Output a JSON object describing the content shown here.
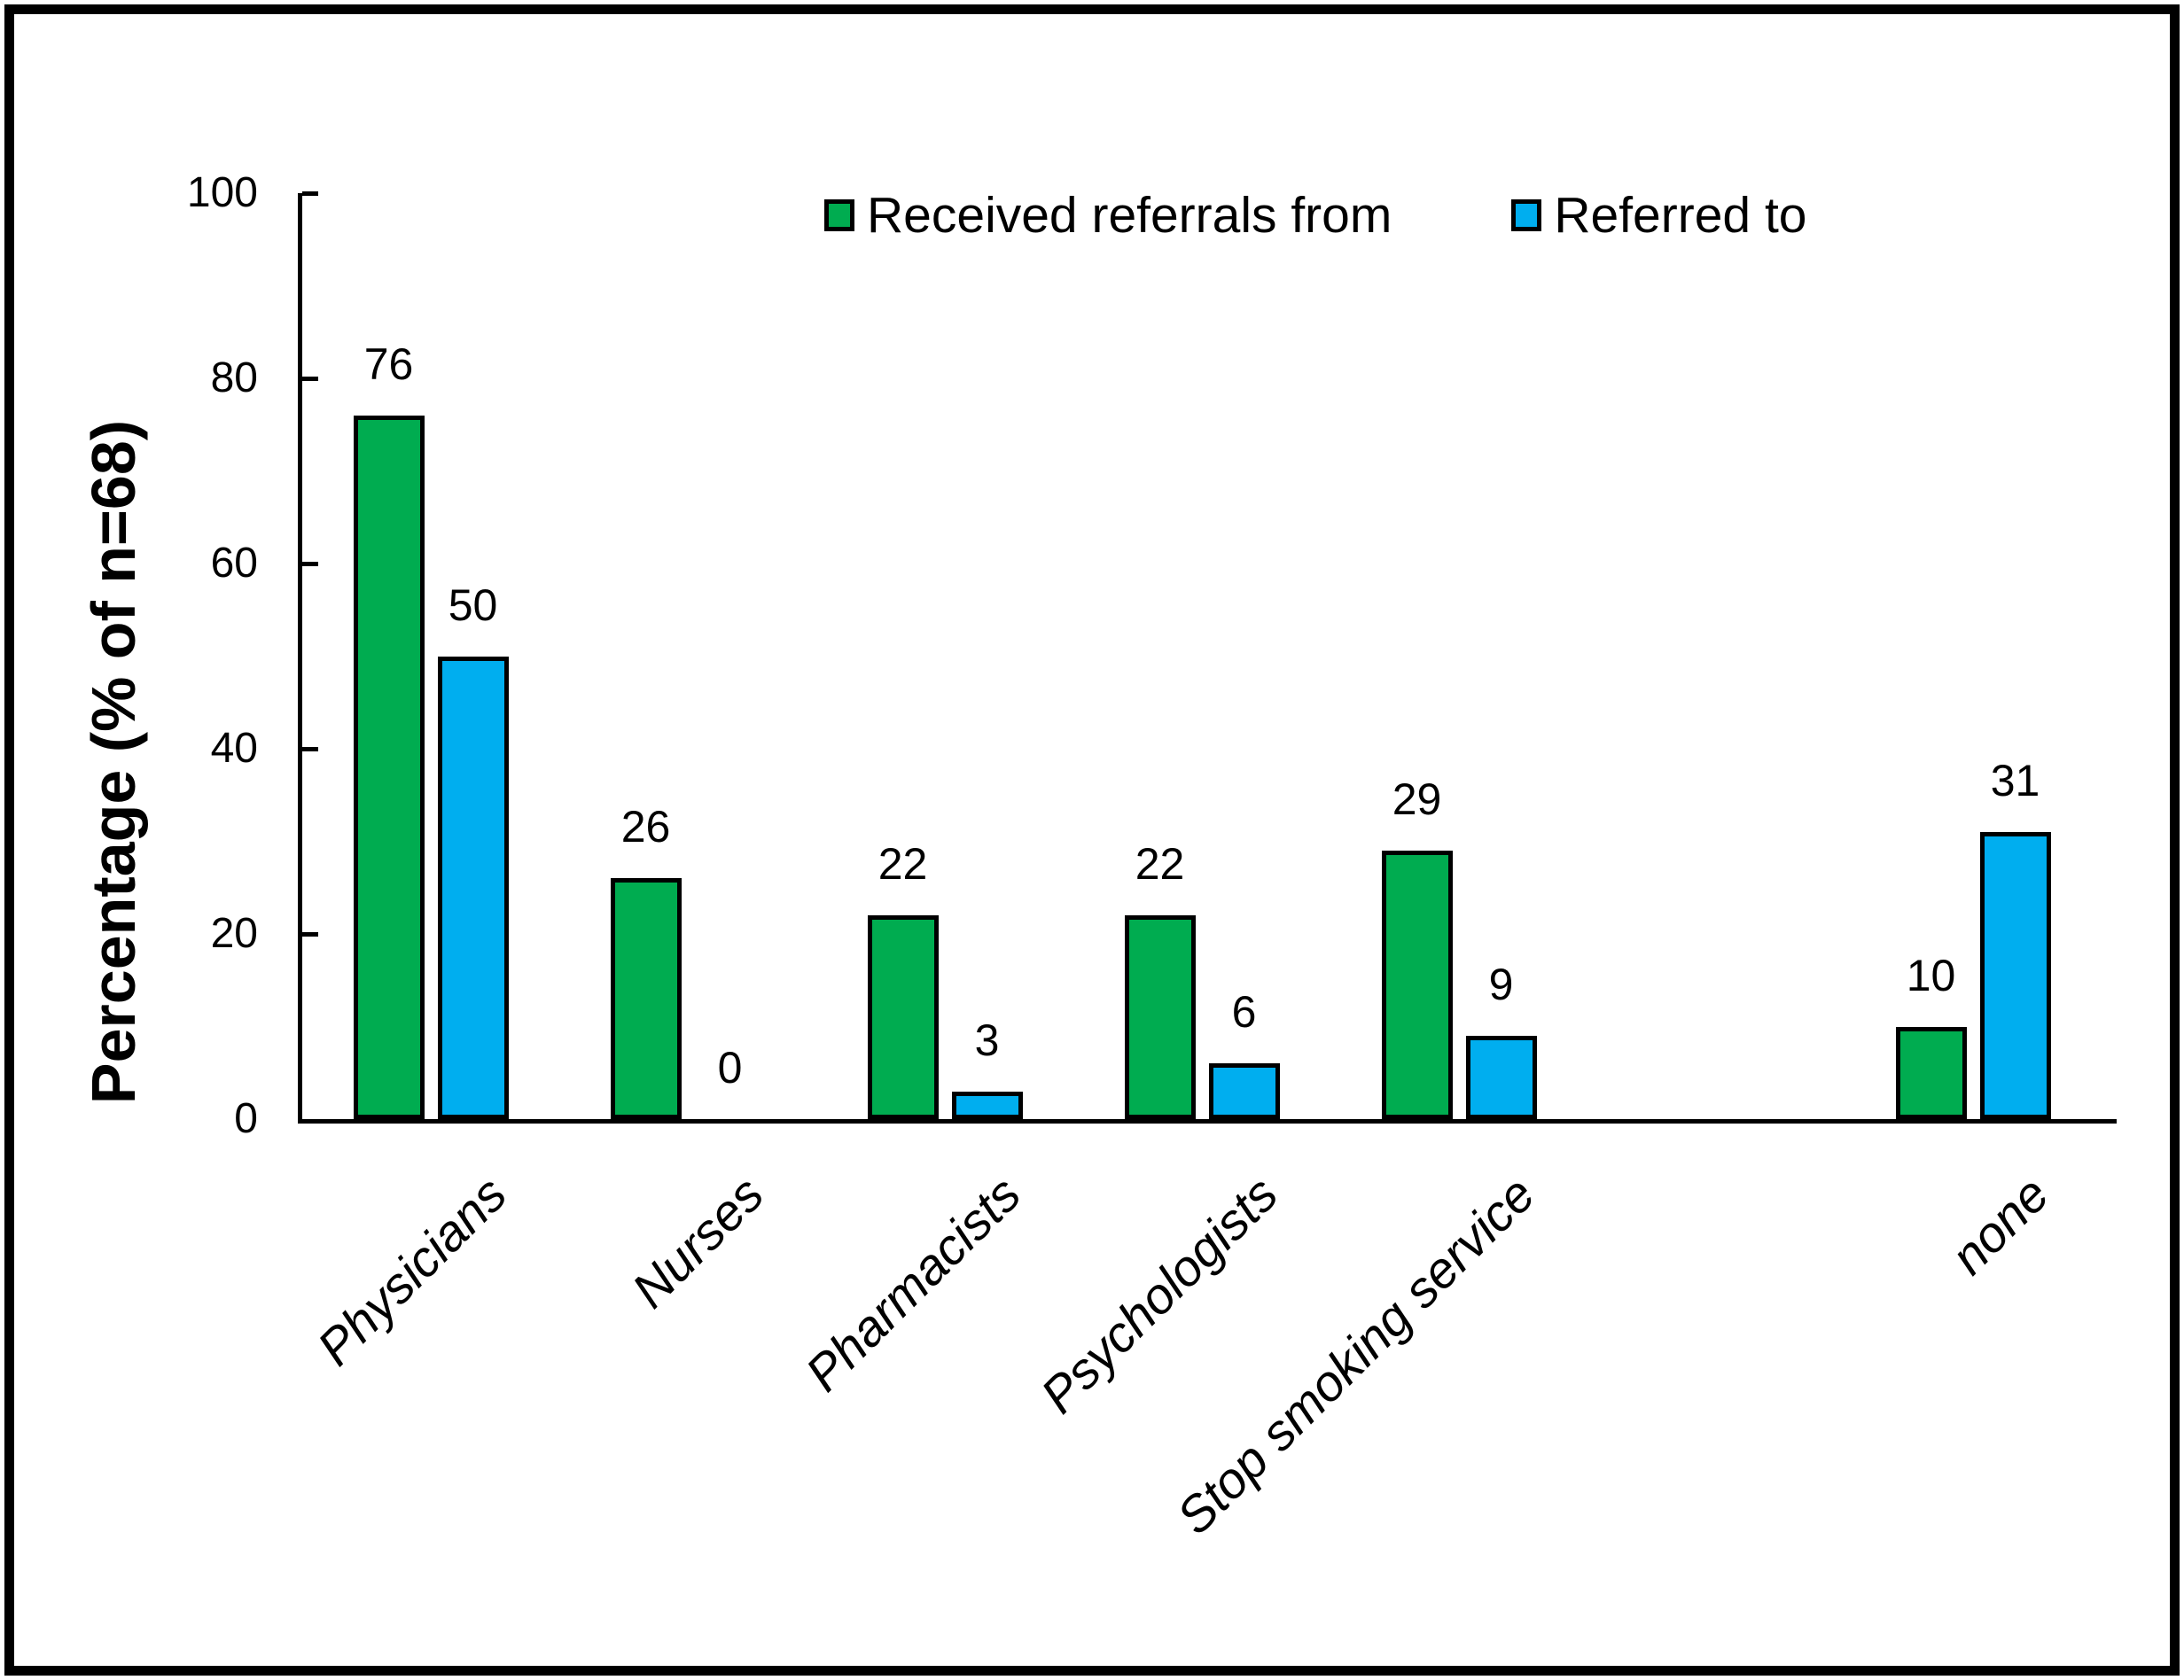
{
  "chart_data": {
    "type": "bar",
    "title": "",
    "xlabel": "",
    "ylabel": "Percentage (% of n=68)",
    "ylim": [
      0,
      100
    ],
    "yticks": [
      0,
      20,
      40,
      60,
      80,
      100
    ],
    "grid": false,
    "legend_position": "top-center",
    "categories": [
      "Physicians",
      "Nurses",
      "Pharmacists",
      "Psychologists",
      "Stop smoking service",
      "none"
    ],
    "category_slots": [
      0,
      1,
      2,
      3,
      4,
      6
    ],
    "total_slots": 7,
    "series": [
      {
        "name": "Received referrals from",
        "color": "#00AC50",
        "values": [
          76,
          26,
          22,
          22,
          29,
          10
        ]
      },
      {
        "name": "Referred to",
        "color": "#00AEEF",
        "values": [
          50,
          0,
          3,
          6,
          9,
          31
        ]
      }
    ],
    "bar_outline_color": "#000000",
    "axis_color": "#000000",
    "frame_border_color": "#000000",
    "data_labels_shown": true
  }
}
